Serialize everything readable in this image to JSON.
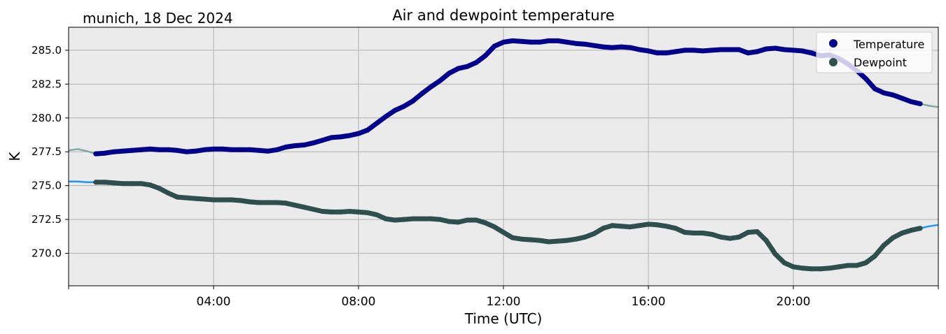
{
  "chart_data": {
    "type": "line",
    "title": "Air and dewpoint temperature",
    "subtitle": "munich, 18 Dec 2024",
    "xlabel": "Time (UTC)",
    "ylabel": "K",
    "x_unit": "hours UTC",
    "xlim": [
      0,
      24
    ],
    "ylim": [
      267.6,
      286.7
    ],
    "x_ticks": [
      {
        "value": 0,
        "label": ""
      },
      {
        "value": 4,
        "label": "04:00"
      },
      {
        "value": 8,
        "label": "08:00"
      },
      {
        "value": 12,
        "label": "12:00"
      },
      {
        "value": 16,
        "label": "16:00"
      },
      {
        "value": 20,
        "label": "20:00"
      },
      {
        "value": 24,
        "label": ""
      }
    ],
    "y_ticks": [
      {
        "value": 270.0,
        "label": "270.0"
      },
      {
        "value": 272.5,
        "label": "272.5"
      },
      {
        "value": 275.0,
        "label": "275.0"
      },
      {
        "value": 277.5,
        "label": "277.5"
      },
      {
        "value": 280.0,
        "label": "280.0"
      },
      {
        "value": 282.5,
        "label": "282.5"
      },
      {
        "value": 285.0,
        "label": "285.0"
      }
    ],
    "grid": true,
    "legend_position": "top-right",
    "series": [
      {
        "name": "Temperature",
        "color": "#00008b",
        "raw_color": "#7fa8a0",
        "x": [
          0.0,
          0.25,
          0.5,
          0.75,
          1.0,
          1.25,
          1.5,
          1.75,
          2.0,
          2.25,
          2.5,
          2.75,
          3.0,
          3.25,
          3.5,
          3.75,
          4.0,
          4.25,
          4.5,
          4.75,
          5.0,
          5.25,
          5.5,
          5.75,
          6.0,
          6.25,
          6.5,
          6.75,
          7.0,
          7.25,
          7.5,
          7.75,
          8.0,
          8.25,
          8.5,
          8.75,
          9.0,
          9.25,
          9.5,
          9.75,
          10.0,
          10.25,
          10.5,
          10.75,
          11.0,
          11.25,
          11.5,
          11.75,
          12.0,
          12.25,
          12.5,
          12.75,
          13.0,
          13.25,
          13.5,
          13.75,
          14.0,
          14.25,
          14.5,
          14.75,
          15.0,
          15.25,
          15.5,
          15.75,
          16.0,
          16.25,
          16.5,
          16.75,
          17.0,
          17.25,
          17.5,
          17.75,
          18.0,
          18.25,
          18.5,
          18.75,
          19.0,
          19.25,
          19.5,
          19.75,
          20.0,
          20.25,
          20.5,
          20.75,
          21.0,
          21.25,
          21.5,
          21.75,
          22.0,
          22.25,
          22.5,
          22.75,
          23.0,
          23.25,
          23.5,
          23.75,
          24.0
        ],
        "y": [
          277.6,
          277.7,
          277.55,
          277.35,
          277.4,
          277.5,
          277.55,
          277.6,
          277.65,
          277.7,
          277.65,
          277.65,
          277.6,
          277.5,
          277.55,
          277.65,
          277.7,
          277.7,
          277.65,
          277.65,
          277.65,
          277.6,
          277.55,
          277.65,
          277.85,
          277.95,
          278.0,
          278.15,
          278.35,
          278.55,
          278.6,
          278.7,
          278.85,
          279.1,
          279.6,
          280.1,
          280.55,
          280.85,
          281.25,
          281.8,
          282.3,
          282.75,
          283.3,
          283.65,
          283.8,
          284.1,
          284.6,
          285.3,
          285.6,
          285.7,
          285.65,
          285.6,
          285.6,
          285.7,
          285.7,
          285.6,
          285.5,
          285.45,
          285.35,
          285.25,
          285.2,
          285.25,
          285.2,
          285.05,
          284.95,
          284.8,
          284.8,
          284.9,
          285.0,
          285.0,
          284.95,
          285.0,
          285.05,
          285.05,
          285.05,
          284.8,
          284.9,
          285.1,
          285.15,
          285.05,
          285.0,
          284.95,
          284.8,
          284.6,
          284.65,
          284.4,
          284.0,
          283.5,
          282.9,
          282.15,
          281.85,
          281.7,
          281.45,
          281.2,
          281.05,
          280.9,
          280.8
        ]
      },
      {
        "name": "Dewpoint",
        "color": "#2f4f4f",
        "raw_color": "#2196f3",
        "x": [
          0.0,
          0.25,
          0.5,
          0.75,
          1.0,
          1.25,
          1.5,
          1.75,
          2.0,
          2.25,
          2.5,
          2.75,
          3.0,
          3.25,
          3.5,
          3.75,
          4.0,
          4.25,
          4.5,
          4.75,
          5.0,
          5.25,
          5.5,
          5.75,
          6.0,
          6.25,
          6.5,
          6.75,
          7.0,
          7.25,
          7.5,
          7.75,
          8.0,
          8.25,
          8.5,
          8.75,
          9.0,
          9.25,
          9.5,
          9.75,
          10.0,
          10.25,
          10.5,
          10.75,
          11.0,
          11.25,
          11.5,
          11.75,
          12.0,
          12.25,
          12.5,
          12.75,
          13.0,
          13.25,
          13.5,
          13.75,
          14.0,
          14.25,
          14.5,
          14.75,
          15.0,
          15.25,
          15.5,
          15.75,
          16.0,
          16.25,
          16.5,
          16.75,
          17.0,
          17.25,
          17.5,
          17.75,
          18.0,
          18.25,
          18.5,
          18.75,
          19.0,
          19.25,
          19.5,
          19.75,
          20.0,
          20.25,
          20.5,
          20.75,
          21.0,
          21.25,
          21.5,
          21.75,
          22.0,
          22.25,
          22.5,
          22.75,
          23.0,
          23.25,
          23.5,
          23.75,
          24.0
        ],
        "y": [
          275.3,
          275.3,
          275.25,
          275.25,
          275.25,
          275.2,
          275.15,
          275.15,
          275.15,
          275.05,
          274.8,
          274.45,
          274.15,
          274.1,
          274.05,
          274.0,
          273.95,
          273.95,
          273.95,
          273.9,
          273.8,
          273.75,
          273.75,
          273.75,
          273.7,
          273.55,
          273.4,
          273.25,
          273.1,
          273.05,
          273.05,
          273.1,
          273.05,
          273.0,
          272.85,
          272.55,
          272.45,
          272.5,
          272.55,
          272.55,
          272.55,
          272.5,
          272.35,
          272.3,
          272.45,
          272.45,
          272.25,
          271.95,
          271.55,
          271.15,
          271.05,
          271.0,
          270.95,
          270.85,
          270.9,
          270.95,
          271.05,
          271.2,
          271.45,
          271.85,
          272.05,
          272.0,
          271.95,
          272.05,
          272.15,
          272.1,
          272.0,
          271.85,
          271.55,
          271.5,
          271.5,
          271.4,
          271.2,
          271.1,
          271.2,
          271.55,
          271.6,
          270.95,
          269.95,
          269.3,
          269.0,
          268.9,
          268.85,
          268.85,
          268.9,
          269.0,
          269.1,
          269.1,
          269.3,
          269.8,
          270.6,
          271.15,
          271.5,
          271.7,
          271.85,
          272.0,
          272.1
        ]
      }
    ]
  }
}
